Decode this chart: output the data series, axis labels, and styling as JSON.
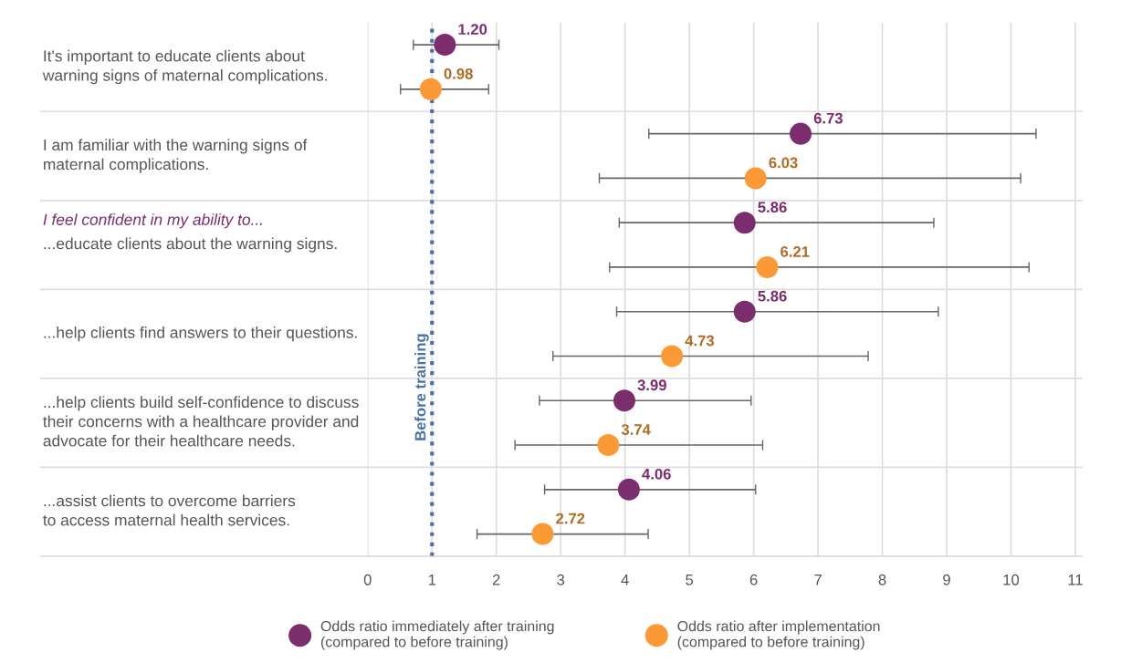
{
  "chart_data": {
    "type": "scatter",
    "orientation": "horizontal",
    "categories": [
      "It's important to educate clients about\nwarning signs of maternal complications.",
      "I am familiar with the warning signs of\nmaternal complications.",
      "...educate clients about the warning signs.",
      "...help clients find answers to their questions.",
      "...help clients build self-confidence to discuss\ntheir concerns with a healthcare provider and\nadvocate for their healthcare needs.",
      "...assist clients to overcome barriers\nto access maternal health services."
    ],
    "series": [
      {
        "name": "Odds ratio immediately after training\n(compared to before training)",
        "color": "#7b2d6e",
        "values": [
          1.2,
          6.73,
          5.86,
          5.86,
          3.99,
          4.06
        ],
        "value_labels": [
          "1.20",
          "6.73",
          "5.86",
          "5.86",
          "3.99",
          "4.06"
        ],
        "errors": [
          [
            0.71,
            2.04
          ],
          [
            4.37,
            10.39
          ],
          [
            3.91,
            8.8
          ],
          [
            3.87,
            8.87
          ],
          [
            2.67,
            5.96
          ],
          [
            2.75,
            6.03
          ]
        ]
      },
      {
        "name": "Odds ratio after implementation\n(compared to before training)",
        "color": "#fb9a35",
        "values": [
          0.98,
          6.03,
          6.21,
          4.73,
          3.74,
          2.72
        ],
        "value_labels": [
          "0.98",
          "6.03",
          "6.21",
          "4.73",
          "3.74",
          "2.72"
        ],
        "errors": [
          [
            0.51,
            1.88
          ],
          [
            3.6,
            10.15
          ],
          [
            3.76,
            10.28
          ],
          [
            2.88,
            7.78
          ],
          [
            2.29,
            6.14
          ],
          [
            1.7,
            4.36
          ]
        ]
      }
    ],
    "xlim": [
      0,
      11.1
    ],
    "xticks": [
      0,
      1,
      2,
      3,
      4,
      5,
      6,
      7,
      8,
      9,
      10,
      11
    ],
    "ref_lines": [
      {
        "axis": "x",
        "value": 1,
        "label": "Before training",
        "color": "#4a72a8",
        "line_style": "dotted"
      }
    ],
    "annotations": [
      "I feel confident in my ability to..."
    ],
    "grid": true,
    "legend": "bottom",
    "marker": "circle"
  }
}
